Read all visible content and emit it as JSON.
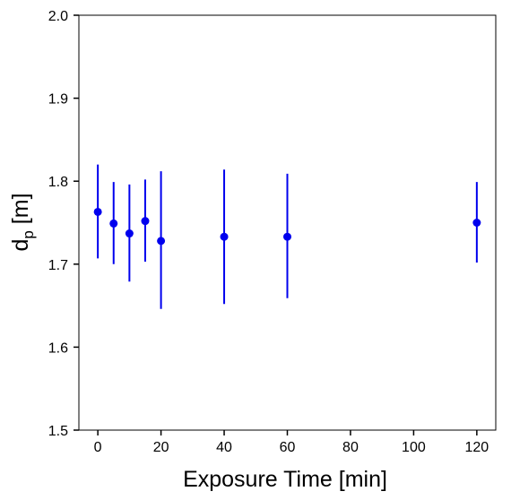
{
  "chart_data": {
    "type": "scatter",
    "title": "",
    "xlabel": "Exposure Time [min]",
    "ylabel_main": "d",
    "ylabel_sub": "p",
    "ylabel_unit": " [m]",
    "xlim": [
      -6,
      126
    ],
    "ylim": [
      1.5,
      2.0
    ],
    "xticks": [
      0,
      20,
      40,
      60,
      80,
      100,
      120
    ],
    "yticks": [
      1.5,
      1.6,
      1.7,
      1.8,
      1.9,
      2.0
    ],
    "xtick_labels": [
      "0",
      "20",
      "40",
      "60",
      "80",
      "100",
      "120"
    ],
    "ytick_labels": [
      "1.5",
      "1.6",
      "1.7",
      "1.8",
      "1.9",
      "2.0"
    ],
    "grid": false,
    "color": "#0000ee",
    "series": [
      {
        "name": "",
        "points": [
          {
            "x": 0,
            "y": 1.763,
            "ylow": 1.707,
            "yhigh": 1.82
          },
          {
            "x": 5,
            "y": 1.749,
            "ylow": 1.7,
            "yhigh": 1.799
          },
          {
            "x": 10,
            "y": 1.737,
            "ylow": 1.679,
            "yhigh": 1.796
          },
          {
            "x": 15,
            "y": 1.752,
            "ylow": 1.703,
            "yhigh": 1.802
          },
          {
            "x": 20,
            "y": 1.728,
            "ylow": 1.646,
            "yhigh": 1.812
          },
          {
            "x": 40,
            "y": 1.733,
            "ylow": 1.652,
            "yhigh": 1.814
          },
          {
            "x": 60,
            "y": 1.733,
            "ylow": 1.659,
            "yhigh": 1.809
          },
          {
            "x": 120,
            "y": 1.75,
            "ylow": 1.702,
            "yhigh": 1.799
          }
        ]
      }
    ]
  }
}
